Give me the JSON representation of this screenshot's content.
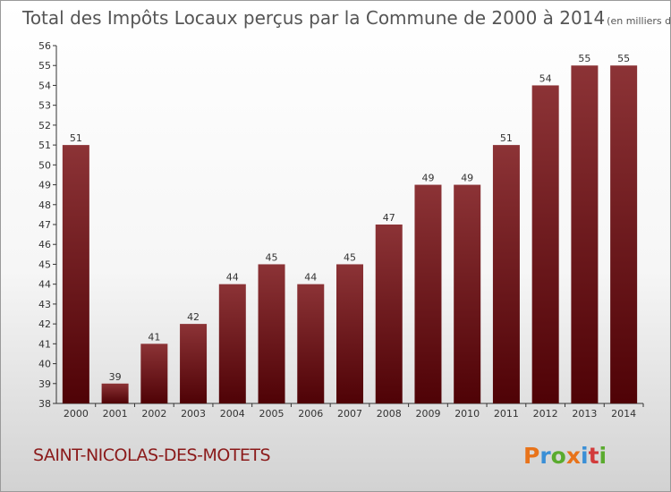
{
  "chart_data": {
    "type": "bar",
    "title": "Total des Impôts Locaux perçus par la Commune de 2000 à 2014",
    "unit": "(en milliers d'€)",
    "categories": [
      "2000",
      "2001",
      "2002",
      "2003",
      "2004",
      "2005",
      "2006",
      "2007",
      "2008",
      "2009",
      "2010",
      "2011",
      "2012",
      "2013",
      "2014"
    ],
    "values": [
      51,
      39,
      41,
      42,
      44,
      45,
      44,
      45,
      47,
      49,
      49,
      51,
      54,
      55,
      55
    ],
    "y_ticks": [
      38,
      39,
      40,
      41,
      42,
      43,
      44,
      45,
      46,
      47,
      48,
      49,
      50,
      51,
      52,
      53,
      54,
      55,
      56
    ],
    "ylim": [
      38,
      56
    ],
    "grid": false,
    "bar_color": "#6e0f12",
    "xlabel": "",
    "ylabel": ""
  },
  "commune_name": "SAINT-NICOLAS-DES-MOTETS",
  "logo": {
    "letters": [
      "P",
      "r",
      "o",
      "x",
      "i",
      "t",
      "i"
    ],
    "colors": [
      "#e8731a",
      "#3a8fd6",
      "#5aab2e",
      "#e8731a",
      "#3a8fd6",
      "#d23b3b",
      "#5aab2e"
    ]
  }
}
